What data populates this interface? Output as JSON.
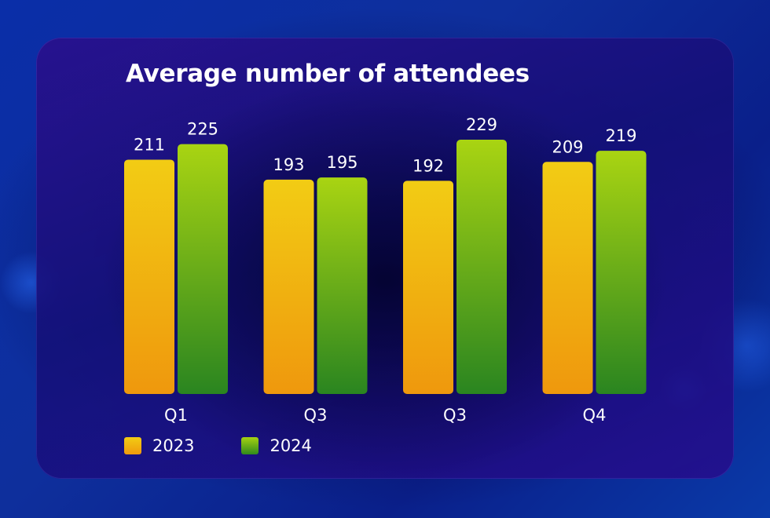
{
  "chart_data": {
    "type": "bar",
    "title": "Average number of attendees",
    "categories": [
      "Q1",
      "Q3",
      "Q3",
      "Q4"
    ],
    "series": [
      {
        "name": "2023",
        "values": [
          211,
          193,
          192,
          209
        ],
        "color": "#f2c414"
      },
      {
        "name": "2024",
        "values": [
          225,
          195,
          229,
          219
        ],
        "color": "#8cc417"
      }
    ],
    "ylim": [
      0,
      229
    ],
    "grid": false,
    "legend_position": "bottom-left",
    "data_labels": true
  }
}
